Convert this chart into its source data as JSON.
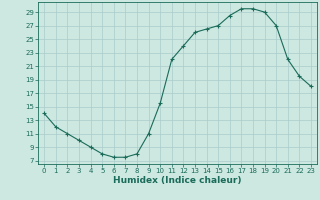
{
  "x": [
    0,
    1,
    2,
    3,
    4,
    5,
    6,
    7,
    8,
    9,
    10,
    11,
    12,
    13,
    14,
    15,
    16,
    17,
    18,
    19,
    20,
    21,
    22,
    23
  ],
  "y": [
    14,
    12,
    11,
    10,
    9,
    8,
    7.5,
    7.5,
    8,
    11,
    15.5,
    22,
    24,
    26,
    26.5,
    27,
    28.5,
    29.5,
    29.5,
    29,
    27,
    22,
    19.5,
    18
  ],
  "line_color": "#1a6b5a",
  "marker": "+",
  "marker_size": 3,
  "marker_linewidth": 0.8,
  "line_width": 0.8,
  "bg_color": "#cce8e0",
  "grid_color": "#aacccc",
  "xlabel": "Humidex (Indice chaleur)",
  "xlabel_fontsize": 6.5,
  "tick_fontsize": 5,
  "ylabel_ticks": [
    7,
    9,
    11,
    13,
    15,
    17,
    19,
    21,
    23,
    25,
    27,
    29
  ],
  "xticks": [
    0,
    1,
    2,
    3,
    4,
    5,
    6,
    7,
    8,
    9,
    10,
    11,
    12,
    13,
    14,
    15,
    16,
    17,
    18,
    19,
    20,
    21,
    22,
    23
  ],
  "xlim": [
    -0.5,
    23.5
  ],
  "ylim": [
    6.5,
    30.5
  ]
}
